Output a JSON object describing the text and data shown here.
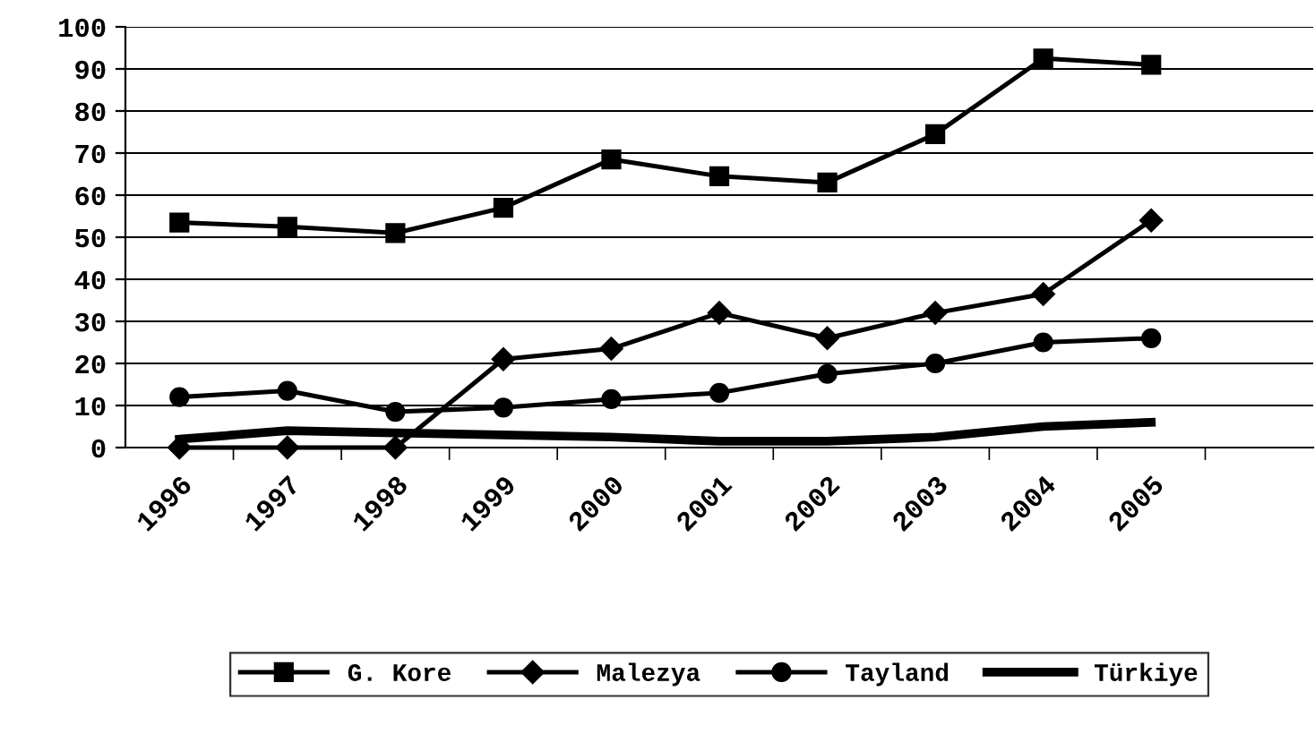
{
  "chart_data": {
    "type": "line",
    "categories": [
      "1996",
      "1997",
      "1998",
      "1999",
      "2000",
      "2001",
      "2002",
      "2003",
      "2004",
      "2005",
      null
    ],
    "series": [
      {
        "name": "G. Kore",
        "color": "#000000",
        "marker": "square",
        "values": [
          53.5,
          52.5,
          51,
          57,
          68.5,
          64.5,
          63,
          74.5,
          92.5,
          91,
          null
        ]
      },
      {
        "name": "Malezya",
        "color": "#000000",
        "marker": "diamond",
        "values": [
          0,
          0,
          0,
          21,
          23.5,
          32,
          26,
          32,
          36.5,
          54,
          null
        ]
      },
      {
        "name": "Tayland",
        "color": "#000000",
        "marker": "circle",
        "values": [
          12,
          13.5,
          8.5,
          9.5,
          11.5,
          13,
          17.5,
          20,
          25,
          26,
          null
        ]
      },
      {
        "name": "Türkiye",
        "color": "#000000",
        "marker": "none",
        "values": [
          2,
          4,
          3.5,
          3,
          2.5,
          1.5,
          1.5,
          2.5,
          5,
          6,
          null
        ]
      }
    ],
    "ylim": [
      0,
      100
    ],
    "yticks": [
      0,
      10,
      20,
      30,
      40,
      50,
      60,
      70,
      80,
      90,
      100
    ],
    "grid": "y",
    "legend": "bottom"
  }
}
